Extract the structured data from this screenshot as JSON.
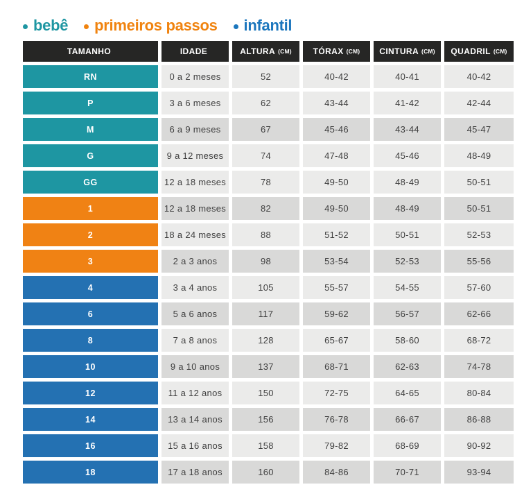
{
  "legend": {
    "items": [
      {
        "label": "bebê",
        "color": "#1e96a2"
      },
      {
        "label": "primeiros passos",
        "color": "#f0830f"
      },
      {
        "label": "infantil",
        "color": "#1b76bd"
      }
    ]
  },
  "table": {
    "header": {
      "bg": "#262625",
      "text_color": "#ffffff",
      "columns": [
        {
          "label": "TAMANHO",
          "unit": ""
        },
        {
          "label": "IDADE",
          "unit": ""
        },
        {
          "label": "ALTURA",
          "unit": "(CM)"
        },
        {
          "label": "TÓRAX",
          "unit": "(CM)"
        },
        {
          "label": "CINTURA",
          "unit": "(CM)"
        },
        {
          "label": "QUADRIL",
          "unit": "(CM)"
        }
      ]
    },
    "group_colors": {
      "bebe": "#1e96a2",
      "primeiros-passos": "#f08214",
      "infantil": "#2471b2"
    },
    "cell_colors": {
      "light": "#ebebea",
      "dark": "#d9d9d8"
    },
    "value_text_color": "#3f3f3f",
    "rows": [
      {
        "size": "RN",
        "group": "bebe",
        "shade": "light",
        "cells": [
          "0 a 2 meses",
          "52",
          "40-42",
          "40-41",
          "40-42"
        ]
      },
      {
        "size": "P",
        "group": "bebe",
        "shade": "light",
        "cells": [
          "3 a 6 meses",
          "62",
          "43-44",
          "41-42",
          "42-44"
        ]
      },
      {
        "size": "M",
        "group": "bebe",
        "shade": "dark",
        "cells": [
          "6 a 9 meses",
          "67",
          "45-46",
          "43-44",
          "45-47"
        ]
      },
      {
        "size": "G",
        "group": "bebe",
        "shade": "light",
        "cells": [
          "9 a 12 meses",
          "74",
          "47-48",
          "45-46",
          "48-49"
        ]
      },
      {
        "size": "GG",
        "group": "bebe",
        "shade": "light",
        "cells": [
          "12 a 18 meses",
          "78",
          "49-50",
          "48-49",
          "50-51"
        ]
      },
      {
        "size": "1",
        "group": "primeiros-passos",
        "shade": "dark",
        "cells": [
          "12 a 18 meses",
          "82",
          "49-50",
          "48-49",
          "50-51"
        ]
      },
      {
        "size": "2",
        "group": "primeiros-passos",
        "shade": "light",
        "cells": [
          "18 a 24 meses",
          "88",
          "51-52",
          "50-51",
          "52-53"
        ]
      },
      {
        "size": "3",
        "group": "primeiros-passos",
        "shade": "dark",
        "cells": [
          "2 a 3 anos",
          "98",
          "53-54",
          "52-53",
          "55-56"
        ]
      },
      {
        "size": "4",
        "group": "infantil",
        "shade": "light",
        "cells": [
          "3 a 4 anos",
          "105",
          "55-57",
          "54-55",
          "57-60"
        ]
      },
      {
        "size": "6",
        "group": "infantil",
        "shade": "dark",
        "cells": [
          "5 a 6 anos",
          "117",
          "59-62",
          "56-57",
          "62-66"
        ]
      },
      {
        "size": "8",
        "group": "infantil",
        "shade": "light",
        "cells": [
          "7 a 8 anos",
          "128",
          "65-67",
          "58-60",
          "68-72"
        ]
      },
      {
        "size": "10",
        "group": "infantil",
        "shade": "dark",
        "cells": [
          "9 a 10 anos",
          "137",
          "68-71",
          "62-63",
          "74-78"
        ]
      },
      {
        "size": "12",
        "group": "infantil",
        "shade": "light",
        "cells": [
          "11 a 12 anos",
          "150",
          "72-75",
          "64-65",
          "80-84"
        ]
      },
      {
        "size": "14",
        "group": "infantil",
        "shade": "dark",
        "cells": [
          "13 a 14 anos",
          "156",
          "76-78",
          "66-67",
          "86-88"
        ]
      },
      {
        "size": "16",
        "group": "infantil",
        "shade": "light",
        "cells": [
          "15 a 16 anos",
          "158",
          "79-82",
          "68-69",
          "90-92"
        ]
      },
      {
        "size": "18",
        "group": "infantil",
        "shade": "dark",
        "cells": [
          "17 a 18 anos",
          "160",
          "84-86",
          "70-71",
          "93-94"
        ]
      }
    ]
  },
  "chart_data": {
    "type": "table",
    "title": "Tabela de medidas infantil (size chart)",
    "legend": [
      "bebê",
      "primeiros passos",
      "infantil"
    ],
    "columns": [
      "TAMANHO",
      "IDADE",
      "ALTURA (CM)",
      "TÓRAX (CM)",
      "CINTURA (CM)",
      "QUADRIL (CM)"
    ],
    "rows": [
      [
        "RN",
        "0 a 2 meses",
        "52",
        "40-42",
        "40-41",
        "40-42"
      ],
      [
        "P",
        "3 a 6 meses",
        "62",
        "43-44",
        "41-42",
        "42-44"
      ],
      [
        "M",
        "6 a 9 meses",
        "67",
        "45-46",
        "43-44",
        "45-47"
      ],
      [
        "G",
        "9 a 12 meses",
        "74",
        "47-48",
        "45-46",
        "48-49"
      ],
      [
        "GG",
        "12 a 18 meses",
        "78",
        "49-50",
        "48-49",
        "50-51"
      ],
      [
        "1",
        "12 a 18 meses",
        "82",
        "49-50",
        "48-49",
        "50-51"
      ],
      [
        "2",
        "18 a 24 meses",
        "88",
        "51-52",
        "50-51",
        "52-53"
      ],
      [
        "3",
        "2 a 3 anos",
        "98",
        "53-54",
        "52-53",
        "55-56"
      ],
      [
        "4",
        "3 a 4 anos",
        "105",
        "55-57",
        "54-55",
        "57-60"
      ],
      [
        "6",
        "5 a 6 anos",
        "117",
        "59-62",
        "56-57",
        "62-66"
      ],
      [
        "8",
        "7 a 8 anos",
        "128",
        "65-67",
        "58-60",
        "68-72"
      ],
      [
        "10",
        "9 a 10 anos",
        "137",
        "68-71",
        "62-63",
        "74-78"
      ],
      [
        "12",
        "11 a 12 anos",
        "150",
        "72-75",
        "64-65",
        "80-84"
      ],
      [
        "14",
        "13 a 14 anos",
        "156",
        "76-78",
        "66-67",
        "86-88"
      ],
      [
        "16",
        "15 a 16 anos",
        "158",
        "79-82",
        "68-69",
        "90-92"
      ],
      [
        "18",
        "17 a 18 anos",
        "160",
        "84-86",
        "70-71",
        "93-94"
      ]
    ],
    "row_groups": [
      "bebê",
      "bebê",
      "bebê",
      "bebê",
      "bebê",
      "primeiros passos",
      "primeiros passos",
      "primeiros passos",
      "infantil",
      "infantil",
      "infantil",
      "infantil",
      "infantil",
      "infantil",
      "infantil",
      "infantil"
    ]
  }
}
